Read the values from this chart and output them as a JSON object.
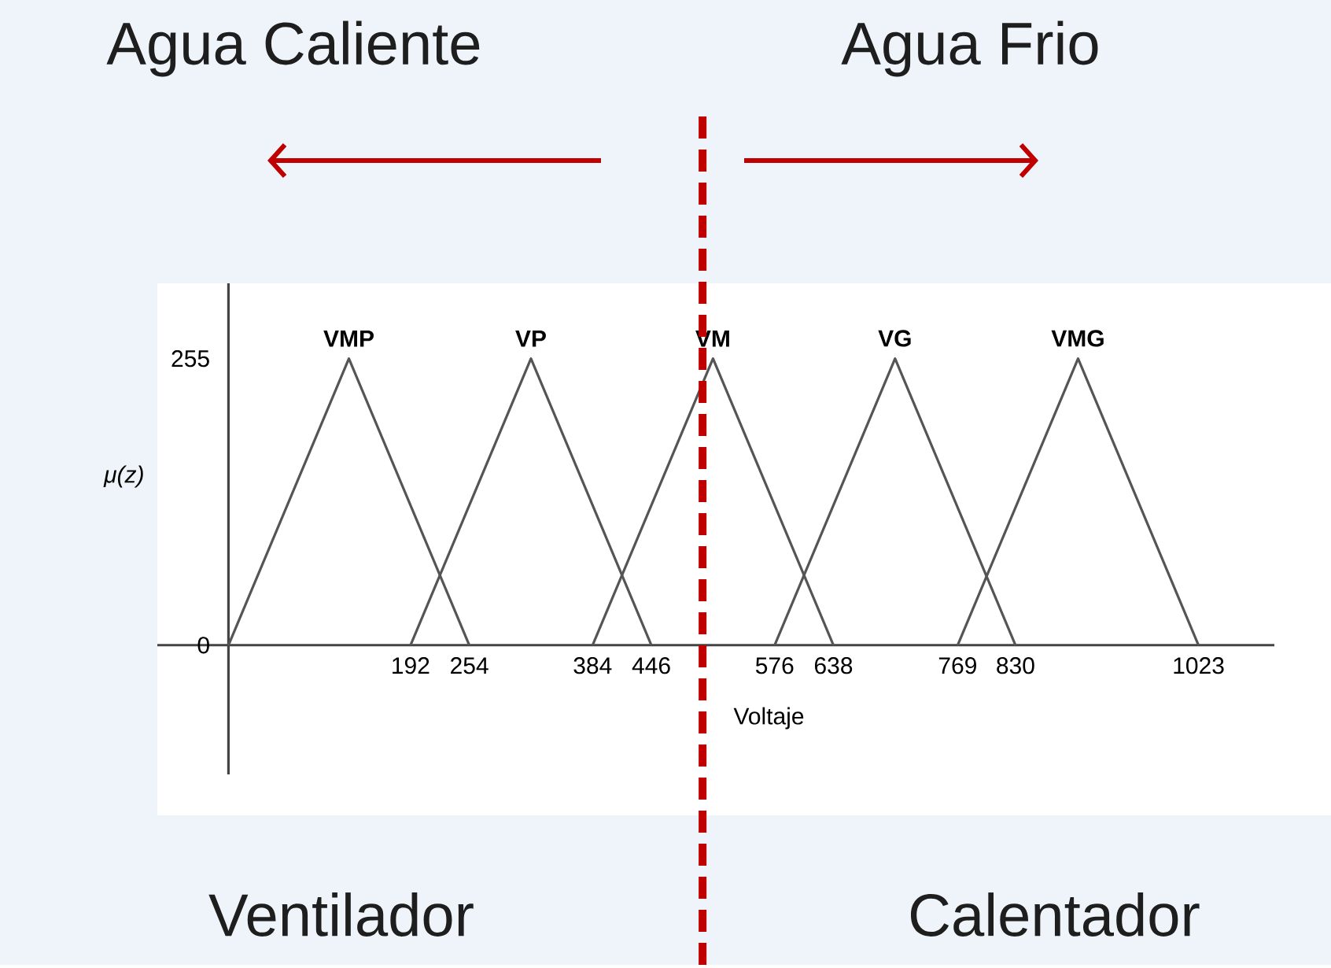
{
  "chart_data": {
    "type": "line",
    "xlabel": "Voltaje",
    "ylabel": "μ(z)",
    "series": [
      {
        "name": "VMP",
        "color": "#555555",
        "x": [
          0,
          127,
          254
        ],
        "values": [
          0,
          255,
          0
        ]
      },
      {
        "name": "VP",
        "color": "#555555",
        "x": [
          192,
          319,
          446
        ],
        "values": [
          0,
          255,
          0
        ]
      },
      {
        "name": "VM",
        "color": "#555555",
        "x": [
          384,
          511,
          638
        ],
        "values": [
          0,
          255,
          0
        ]
      },
      {
        "name": "VG",
        "color": "#555555",
        "x": [
          576,
          703,
          830
        ],
        "values": [
          0,
          255,
          0
        ]
      },
      {
        "name": "VMG",
        "color": "#555555",
        "x": [
          769,
          896,
          1023
        ],
        "values": [
          0,
          255,
          0
        ]
      }
    ],
    "xlim": [
      -75,
      1103
    ],
    "ylim": [
      -115,
      322
    ],
    "xticks": [
      192,
      254,
      384,
      446,
      576,
      638,
      769,
      830,
      1023
    ],
    "yticks": [
      0,
      255
    ],
    "ref_lines": [
      {
        "axis": "x",
        "value": 500,
        "color": "#c00000",
        "line_style": "dashed"
      }
    ],
    "annotations": [
      "Agua Caliente",
      "Agua Frio",
      "Ventilador",
      "Calentador"
    ],
    "grid": false,
    "legend": false,
    "marker": "none",
    "line_style": "solid"
  }
}
